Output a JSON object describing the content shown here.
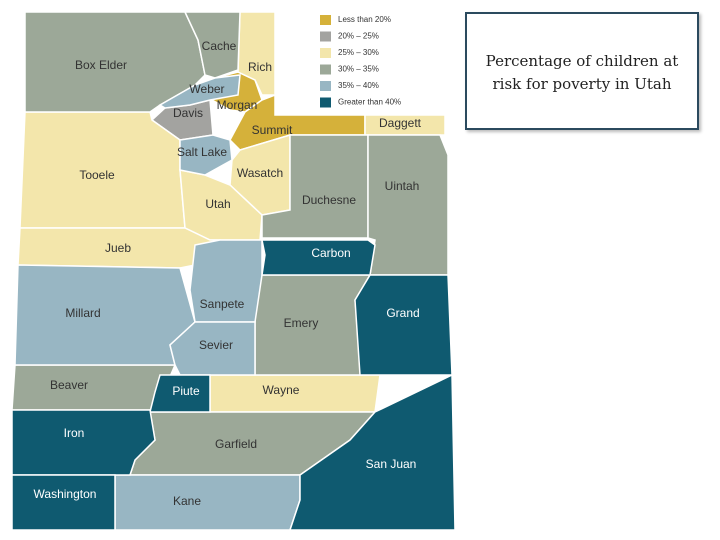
{
  "title": "Percentage of children at risk for poverty in Utah",
  "legend": [
    {
      "label": "Less than 20%",
      "color": "#d5b13a",
      "counties": [
        "Morgan",
        "Summit"
      ]
    },
    {
      "label": "20% – 25%",
      "color": "#a3a3a0",
      "counties": [
        "Davis"
      ]
    },
    {
      "label": "25% – 30%",
      "color": "#f3e6ab",
      "counties": [
        "Rich",
        "Daggett",
        "Tooele",
        "Wasatch",
        "Utah",
        "Jueb",
        "Wayne"
      ]
    },
    {
      "label": "30% – 35%",
      "color": "#9ca898",
      "counties": [
        "Box Elder",
        "Cache",
        "Duchesne",
        "Uintah",
        "Emery",
        "Beaver",
        "Garfield"
      ]
    },
    {
      "label": "35% – 40%",
      "color": "#98b6c3",
      "counties": [
        "Weber",
        "Salt Lake",
        "Millard",
        "Sanpete",
        "Sevier",
        "Kane"
      ]
    },
    {
      "label": "Greater than 40%",
      "color": "#0f5a70",
      "counties": [
        "Carbon",
        "Grand",
        "Piute",
        "Iron",
        "Washington",
        "San Juan"
      ]
    }
  ]
}
